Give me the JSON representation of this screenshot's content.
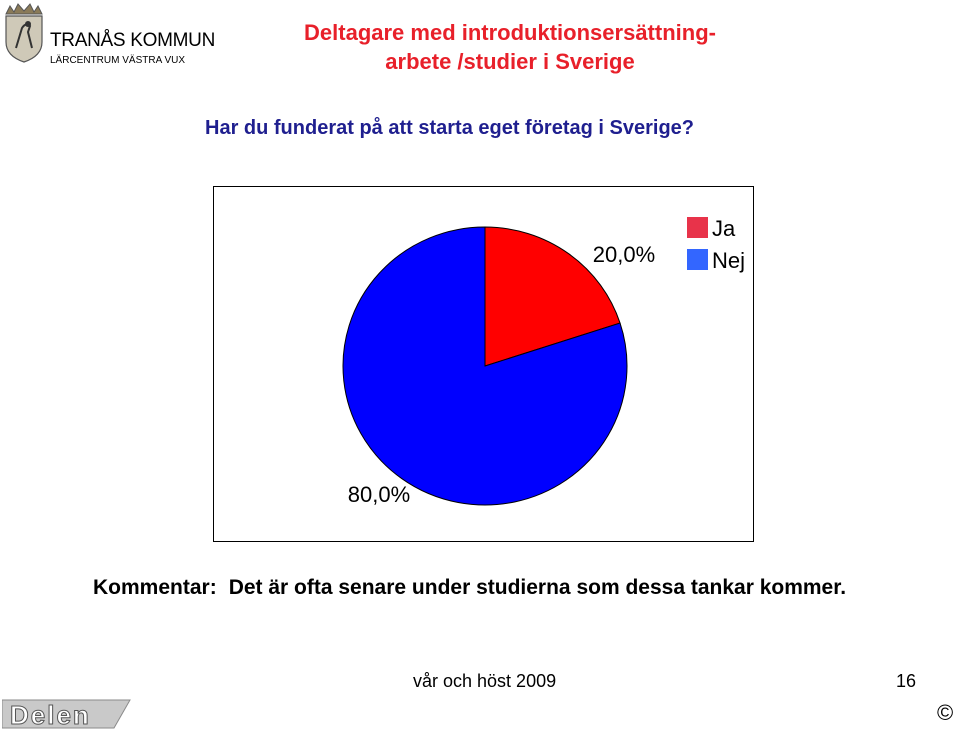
{
  "logo": {
    "name": "TRANÅS KOMMUN",
    "subtitle": "LÄRCENTRUM VÄSTRA VUX"
  },
  "title_line1": "Deltagare med introduktionsersättning-",
  "title_line2": "arbete /studier i Sverige",
  "question": "Har du funderat på att starta eget företag i Sverige?",
  "chart_data": {
    "type": "pie",
    "categories": [
      "Ja",
      "Nej"
    ],
    "values": [
      20.0,
      80.0
    ],
    "data_labels": [
      "20,0%",
      "80,0%"
    ],
    "colors": [
      "#ff0000",
      "#0000ff"
    ],
    "legend_colors": [
      "#e8334a",
      "#3366ff"
    ],
    "legend_position": "top-right",
    "start": "12 o'clock, clockwise"
  },
  "comment": {
    "label": "Kommentar:",
    "text": "Det är ofta senare under studierna som dessa tankar kommer."
  },
  "footer": {
    "semester": "vår och höst 2009",
    "page_number": "16",
    "brand": "Delen",
    "copyright": "©"
  }
}
